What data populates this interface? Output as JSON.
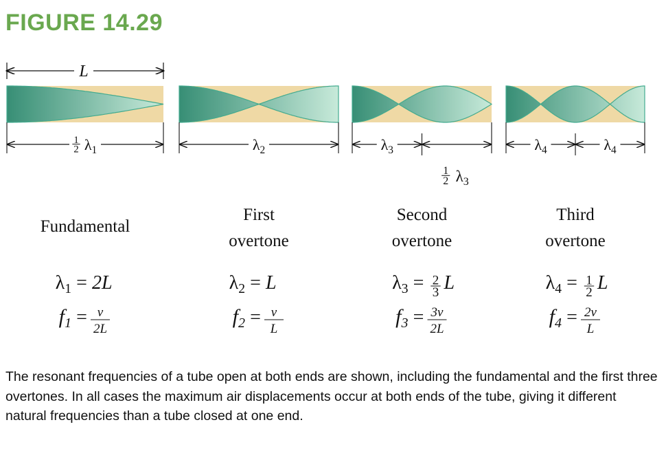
{
  "figure_title": "FIGURE 14.29",
  "colors": {
    "title": "#6aa84f",
    "tube_fill": "#efd9a5",
    "wave_dark": "#2e8b73",
    "wave_light": "#bfe6d8",
    "wave_stroke": "#3aa88d"
  },
  "top_length_label": "L",
  "panels": [
    {
      "name_lines": [
        "Fundamental"
      ],
      "dim_segments": [
        {
          "coef_num": "1",
          "coef_den": "2",
          "sym": "λ",
          "sub": "1"
        }
      ],
      "eq_lambda": {
        "lhs": "λ",
        "sub": "1",
        "rhs_num": "",
        "rhs_den": "",
        "rhs": "2L"
      },
      "eq_freq": {
        "lhs": "f",
        "sub": "1",
        "coef": "",
        "num": "v",
        "den": "2L"
      }
    },
    {
      "name_lines": [
        "First",
        "overtone"
      ],
      "dim_segments": [
        {
          "coef_num": "",
          "coef_den": "",
          "sym": "λ",
          "sub": "2"
        }
      ],
      "eq_lambda": {
        "lhs": "λ",
        "sub": "2",
        "rhs_num": "",
        "rhs_den": "",
        "rhs": "L"
      },
      "eq_freq": {
        "lhs": "f",
        "sub": "2",
        "coef": "",
        "num": "v",
        "den": "L"
      }
    },
    {
      "name_lines": [
        "Second",
        "overtone"
      ],
      "dim_segments": [
        {
          "coef_num": "",
          "coef_den": "",
          "sym": "λ",
          "sub": "3"
        },
        {
          "coef_num": "",
          "coef_den": "",
          "sym": "",
          "sub": ""
        }
      ],
      "extra_label": {
        "coef_num": "1",
        "coef_den": "2",
        "sym": "λ",
        "sub": "3"
      },
      "eq_lambda": {
        "lhs": "λ",
        "sub": "3",
        "rhs_num": "2",
        "rhs_den": "3",
        "rhs": "L"
      },
      "eq_freq": {
        "lhs": "f",
        "sub": "3",
        "coef": "",
        "num": "3v",
        "den": "2L"
      }
    },
    {
      "name_lines": [
        "Third",
        "overtone"
      ],
      "dim_segments": [
        {
          "coef_num": "",
          "coef_den": "",
          "sym": "λ",
          "sub": "4"
        },
        {
          "coef_num": "",
          "coef_den": "",
          "sym": "λ",
          "sub": "4"
        }
      ],
      "eq_lambda": {
        "lhs": "λ",
        "sub": "4",
        "rhs_num": "1",
        "rhs_den": "2",
        "rhs": "L"
      },
      "eq_freq": {
        "lhs": "f",
        "sub": "4",
        "coef": "",
        "num": "2v",
        "den": "L"
      }
    }
  ],
  "wave_humps": [
    0.5,
    1,
    1.5,
    2
  ],
  "caption": "The resonant frequencies of a tube open at both ends are shown, including the fundamental and the first three overtones. In all cases the maximum air displacements occur at both ends of the tube, giving it different natural frequencies than a tube closed at one end."
}
